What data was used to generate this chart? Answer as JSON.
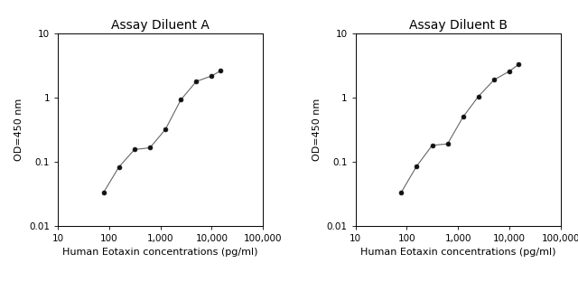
{
  "chart_A": {
    "title": "Assay Diluent A",
    "x": [
      78,
      156,
      313,
      625,
      1250,
      2500,
      5000,
      10000,
      15000
    ],
    "y": [
      0.033,
      0.083,
      0.155,
      0.165,
      0.32,
      0.93,
      1.8,
      2.2,
      2.65
    ],
    "xlabel": "Human Eotaxin concentrations (pg/ml)",
    "ylabel": "OD=450 nm",
    "xlim": [
      10,
      100000
    ],
    "ylim": [
      0.01,
      10
    ]
  },
  "chart_B": {
    "title": "Assay Diluent B",
    "x": [
      78,
      156,
      313,
      625,
      1250,
      2500,
      5000,
      10000,
      15000
    ],
    "y": [
      0.033,
      0.085,
      0.18,
      0.19,
      0.5,
      1.05,
      1.9,
      2.6,
      3.3
    ],
    "xlabel": "Human Eotaxin concentrations (pg/ml)",
    "ylabel": "OD=450 nm",
    "xlim": [
      10,
      100000
    ],
    "ylim": [
      0.01,
      10
    ]
  },
  "line_color": "#666666",
  "marker_color": "#111111",
  "background_color": "#ffffff",
  "title_fontsize": 10,
  "label_fontsize": 8,
  "tick_fontsize": 7.5,
  "xticks": [
    10,
    100,
    1000,
    10000,
    100000
  ],
  "xtick_labels": [
    "10",
    "100",
    "1,000",
    "10,000",
    "100,000"
  ],
  "yticks": [
    0.01,
    0.1,
    1,
    10
  ],
  "ytick_labels": [
    "0.01",
    "0.1",
    "1",
    "10"
  ]
}
